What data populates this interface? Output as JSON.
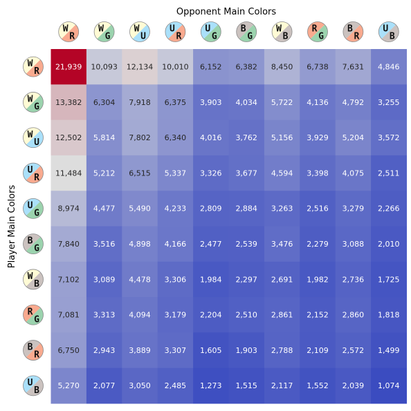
{
  "chart_data": {
    "type": "heatmap",
    "title": "Opponent Main Colors",
    "xlabel": "",
    "ylabel": "Player Main Colors",
    "columns": [
      "WR",
      "WG",
      "WU",
      "UR",
      "UG",
      "BG",
      "WB",
      "RG",
      "BR",
      "UB"
    ],
    "rows": [
      "WR",
      "WG",
      "WU",
      "UR",
      "UG",
      "BG",
      "WB",
      "RG",
      "BR",
      "UB"
    ],
    "color_scale": {
      "min_color": "#3b4cc0",
      "mid_color": "#dddddd",
      "max_color": "#b40426",
      "vmin": 1074,
      "vmax": 21939
    },
    "values": [
      [
        21939,
        10093,
        12134,
        10010,
        6152,
        6382,
        8450,
        6738,
        7631,
        4846
      ],
      [
        13382,
        6304,
        7918,
        6375,
        3903,
        4034,
        5722,
        4136,
        4792,
        3255
      ],
      [
        12502,
        5814,
        7802,
        6340,
        4016,
        3762,
        5156,
        3929,
        5204,
        3572
      ],
      [
        11484,
        5212,
        6515,
        5337,
        3326,
        3677,
        4594,
        3398,
        4075,
        2511
      ],
      [
        8974,
        4477,
        5490,
        4233,
        2809,
        2884,
        3263,
        2516,
        3279,
        2266
      ],
      [
        7840,
        3516,
        4898,
        4166,
        2477,
        2539,
        3476,
        2279,
        3088,
        2010
      ],
      [
        7102,
        3089,
        4478,
        3306,
        1984,
        2297,
        2691,
        1982,
        2736,
        1725
      ],
      [
        7081,
        3313,
        4094,
        3179,
        2204,
        2510,
        2861,
        2152,
        2860,
        1818
      ],
      [
        6750,
        2943,
        3889,
        3307,
        1605,
        1903,
        2788,
        2109,
        2572,
        1499
      ],
      [
        5270,
        2077,
        3050,
        2485,
        1273,
        1515,
        2117,
        1552,
        2039,
        1074
      ]
    ],
    "mana_colors": {
      "W": "#fffbd5",
      "U": "#aae0fa",
      "B": "#cbc2bf",
      "R": "#f9aa8f",
      "G": "#9bd3ae"
    }
  }
}
